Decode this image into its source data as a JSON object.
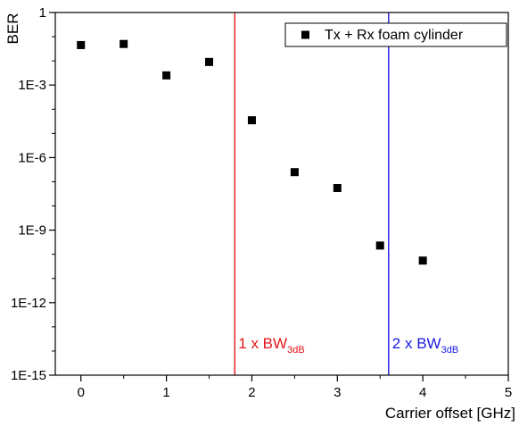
{
  "chart_data": {
    "type": "scatter",
    "xlabel": "Carrier offset [GHz]",
    "ylabel": "BER",
    "xlim": [
      -0.3,
      5
    ],
    "ylim": [
      1e-15,
      1
    ],
    "yscale": "log",
    "xticks": [
      0,
      1,
      2,
      3,
      4,
      5
    ],
    "xtick_labels": [
      "0",
      "1",
      "2",
      "3",
      "4",
      "5"
    ],
    "yticks": [
      1,
      0.001,
      1e-06,
      1e-09,
      1e-12,
      1e-15
    ],
    "ytick_labels": [
      "1",
      "1E-3",
      "1E-6",
      "1E-9",
      "1E-12",
      "1E-15"
    ],
    "grid": false,
    "legend_position": "top-right",
    "series": [
      {
        "name": "Tx + Rx foam cylinder",
        "color": "#000000",
        "marker": "square",
        "x": [
          0,
          0.5,
          1,
          1.5,
          2,
          2.5,
          3,
          3.5,
          4
        ],
        "y": [
          0.045,
          0.05,
          0.0025,
          0.009,
          3.5e-05,
          2.5e-07,
          5.5e-08,
          2.3e-10,
          5.5e-11
        ]
      }
    ],
    "vlines": [
      {
        "x": 1.8,
        "color": "#e8151b",
        "label_main": "1 x BW",
        "label_sub": "3dB"
      },
      {
        "x": 3.6,
        "color": "#1a1adf",
        "label_main": "2 x BW",
        "label_sub": "3dB"
      }
    ]
  }
}
